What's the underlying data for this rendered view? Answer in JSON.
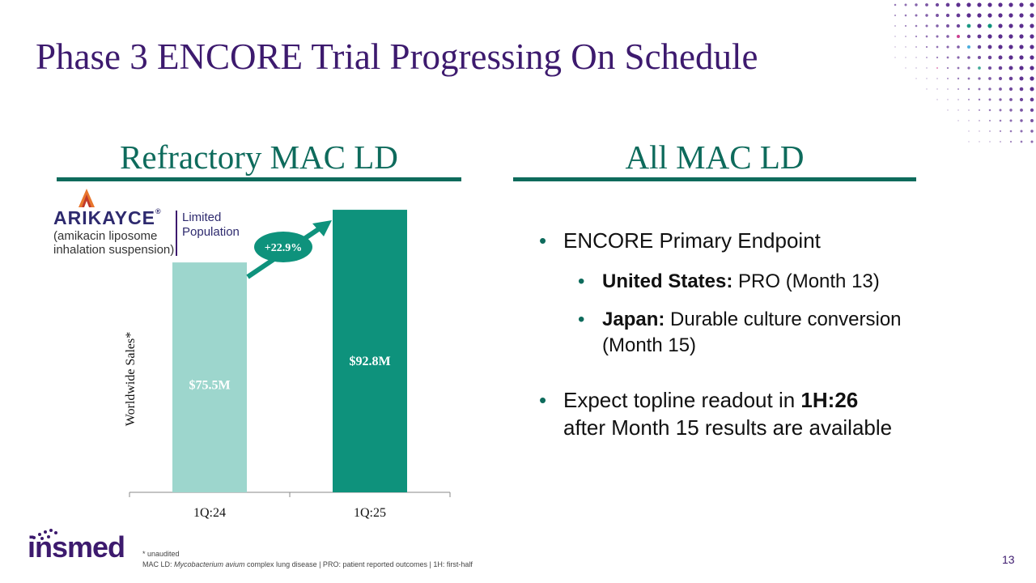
{
  "title": "Phase 3 ENCORE Trial Progressing On Schedule",
  "left_section": {
    "heading": "Refractory MAC LD"
  },
  "right_section": {
    "heading": "All MAC LD"
  },
  "logo": {
    "brand": "ARIKAYCE",
    "brand_mark": "®",
    "subtitle_line1": "(amikacin liposome",
    "subtitle_line2": "inhalation suspension)",
    "population_line1": "Limited",
    "population_line2": "Population"
  },
  "chart_data": {
    "type": "bar",
    "categories": [
      "1Q:24",
      "1Q:25"
    ],
    "values": [
      75.5,
      92.8
    ],
    "value_labels": [
      "$75.5M",
      "$92.8M"
    ],
    "ylabel": "Worldwide Sales*",
    "growth_label": "+22.9%",
    "colors": [
      "#9dd6cd",
      "#0e927c"
    ],
    "ylim": [
      0,
      100
    ]
  },
  "bullets": {
    "item1": "ENCORE Primary Endpoint",
    "sub1_bold": "United States:",
    "sub1_text": " PRO (Month 13)",
    "sub2_bold": "Japan:",
    "sub2_text": " Durable culture conversion",
    "sub2_cont": "(Month 15)",
    "item2_pre": "Expect topline readout in ",
    "item2_bold": "1H:26",
    "item2_cont": "after Month 15 results are available"
  },
  "footer": {
    "company": "insmed",
    "note1": "* unaudited",
    "note2_pre": "MAC LD: ",
    "note2_italic": "Mycobacterium avium",
    "note2_post": " complex lung disease | PRO: patient reported outcomes | 1H: first-half",
    "page_number": "13"
  },
  "colors": {
    "purple": "#3d1a6e",
    "teal": "#0e6b5c",
    "bar_light": "#9dd6cd",
    "bar_dark": "#0e927c"
  }
}
